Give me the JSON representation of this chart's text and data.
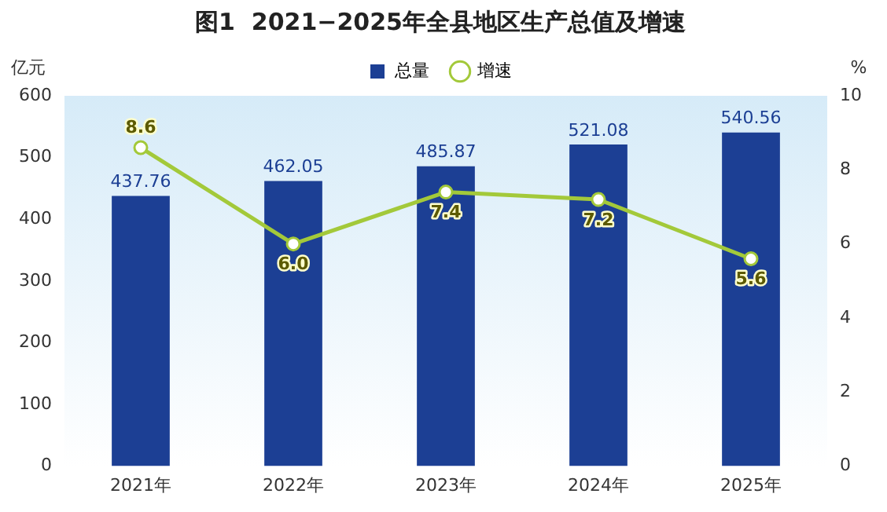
{
  "chart_data": {
    "type": "bar",
    "title": "图1  2021−2025年全县地区生产总值及增速",
    "ylabel": "亿元",
    "y2label": "%",
    "categories": [
      "2021年",
      "2022年",
      "2023年",
      "2024年",
      "2025年"
    ],
    "series": [
      {
        "name": "总量",
        "color": "#1c3f94",
        "values": [
          437.76,
          462.05,
          485.87,
          521.08,
          540.56
        ],
        "value_labels": [
          "437.76",
          "462.05",
          "485.87",
          "521.08",
          "540.56"
        ]
      },
      {
        "name": "增速",
        "type": "line",
        "axis": "y2",
        "color": "#a3c93a",
        "values": [
          8.6,
          6.0,
          7.4,
          7.2,
          5.6
        ],
        "value_labels": [
          "8.6",
          "6.0",
          "7.4",
          "7.2",
          "5.6"
        ]
      }
    ],
    "ylim": [
      0,
      600
    ],
    "yticks": [
      0,
      100,
      200,
      300,
      400,
      500,
      600
    ],
    "y2lim": [
      0,
      10
    ],
    "y2ticks": [
      0,
      2,
      4,
      6,
      8,
      10
    ],
    "grid": false,
    "legend": "top",
    "marker": "circle",
    "line_style": "solid"
  }
}
